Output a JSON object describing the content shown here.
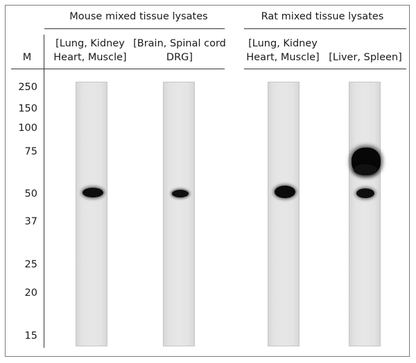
{
  "headers": {
    "mouse": "Mouse mixed tissue lysates",
    "rat": "Rat mixed tissue lysates"
  },
  "marker_label": "M",
  "lanes": [
    {
      "line1": "[Lung, Kidney",
      "line2": "Heart, Muscle]"
    },
    {
      "line1": "[Brain, Spinal cord",
      "line2": "DRG]"
    },
    {
      "line1": "[Lung, Kidney",
      "line2": "Heart, Muscle]"
    },
    {
      "line1": "[Liver, Spleen]",
      "line2": ""
    }
  ],
  "markers": [
    "250",
    "150",
    "100",
    "75",
    "50",
    "37",
    "25",
    "20",
    "15"
  ],
  "bands": [
    {
      "lane": 1,
      "kda": 50,
      "intensity": "strong"
    },
    {
      "lane": 2,
      "kda": 50,
      "intensity": "medium"
    },
    {
      "lane": 3,
      "kda": 50,
      "intensity": "strong"
    },
    {
      "lane": 4,
      "kda": 50,
      "intensity": "medium"
    },
    {
      "lane": 4,
      "kda": 75,
      "intensity": "very strong"
    }
  ],
  "colors": {
    "band": "#0a0a0a",
    "lane_bg": "#e5e5e5",
    "lane_border": "#c4c4c4"
  }
}
